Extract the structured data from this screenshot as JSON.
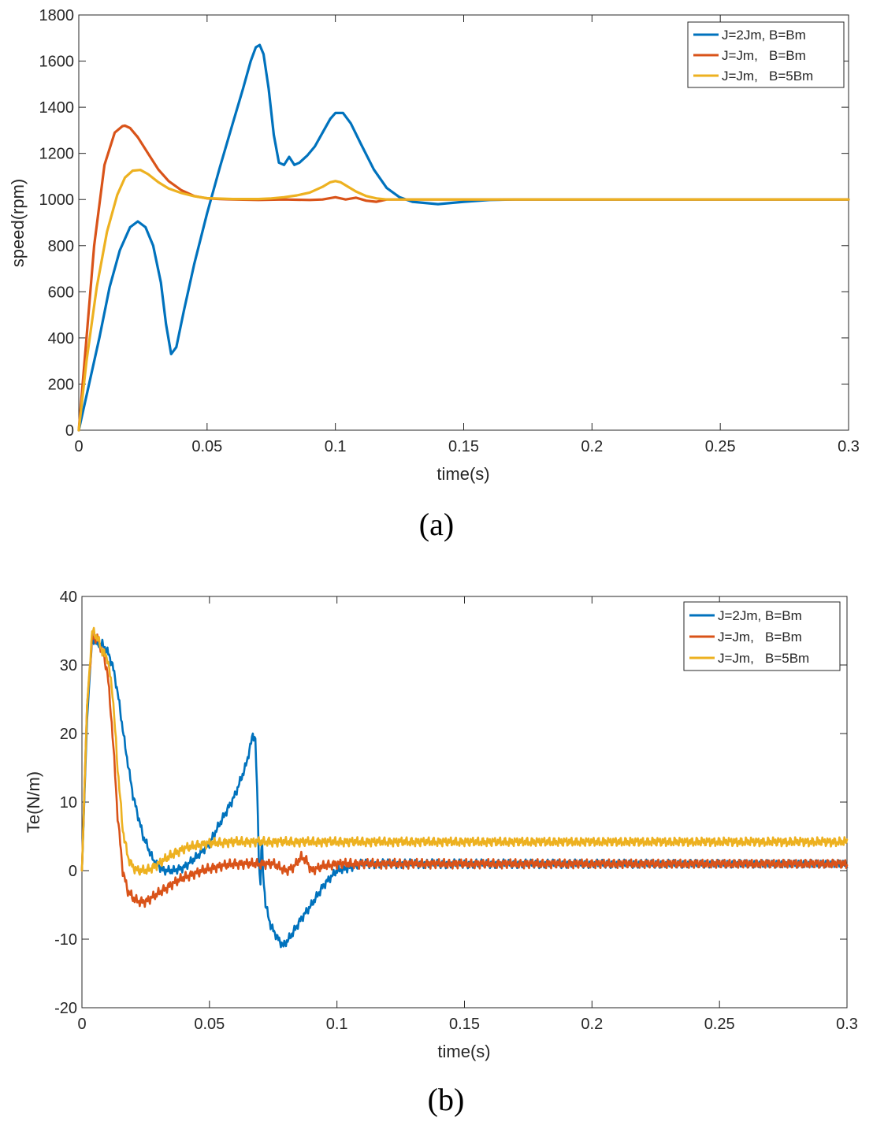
{
  "chart_data": [
    {
      "type": "line",
      "caption": "(a)",
      "xlabel": "time(s)",
      "ylabel": "speed(rpm)",
      "xlim": [
        0,
        0.3
      ],
      "ylim": [
        0,
        1800
      ],
      "xticks": [
        0,
        0.05,
        0.1,
        0.15,
        0.2,
        0.25,
        0.3
      ],
      "xtick_labels": [
        "0",
        "0.05",
        "0.1",
        "0.15",
        "0.2",
        "0.25",
        "0.3"
      ],
      "yticks": [
        0,
        200,
        400,
        600,
        800,
        1000,
        1200,
        1400,
        1600,
        1800
      ],
      "ytick_labels": [
        "0",
        "200",
        "400",
        "600",
        "800",
        "1000",
        "1200",
        "1400",
        "1600",
        "1800"
      ],
      "grid": false,
      "legend_position": "top-right",
      "series": [
        {
          "name": "J=2Jm, B=Bm",
          "color": "#0072BD",
          "x": [
            0,
            0.003,
            0.008,
            0.012,
            0.016,
            0.02,
            0.023,
            0.026,
            0.029,
            0.032,
            0.034,
            0.036,
            0.038,
            0.041,
            0.045,
            0.05,
            0.055,
            0.06,
            0.064,
            0.067,
            0.069,
            0.0705,
            0.072,
            0.074,
            0.076,
            0.078,
            0.08,
            0.082,
            0.084,
            0.086,
            0.089,
            0.092,
            0.095,
            0.098,
            0.1,
            0.103,
            0.106,
            0.11,
            0.115,
            0.12,
            0.125,
            0.13,
            0.135,
            0.14,
            0.145,
            0.15,
            0.16,
            0.17,
            0.3
          ],
          "y": [
            0,
            150,
            400,
            620,
            780,
            880,
            905,
            880,
            800,
            640,
            460,
            330,
            360,
            520,
            720,
            940,
            1140,
            1330,
            1480,
            1600,
            1660,
            1670,
            1630,
            1480,
            1280,
            1160,
            1150,
            1185,
            1150,
            1160,
            1190,
            1230,
            1290,
            1350,
            1375,
            1375,
            1330,
            1240,
            1130,
            1050,
            1010,
            990,
            985,
            980,
            985,
            990,
            998,
            1000,
            1000
          ]
        },
        {
          "name": "J=Jm,   B=Bm",
          "color": "#D95319",
          "x": [
            0,
            0.003,
            0.006,
            0.01,
            0.014,
            0.017,
            0.018,
            0.02,
            0.023,
            0.027,
            0.031,
            0.035,
            0.04,
            0.045,
            0.05,
            0.055,
            0.06,
            0.07,
            0.08,
            0.09,
            0.095,
            0.1,
            0.104,
            0.108,
            0.112,
            0.116,
            0.12,
            0.13,
            0.3
          ],
          "y": [
            0,
            400,
            800,
            1150,
            1290,
            1318,
            1320,
            1310,
            1270,
            1200,
            1130,
            1080,
            1040,
            1015,
            1005,
            1002,
            1000,
            998,
            1000,
            998,
            1000,
            1010,
            1000,
            1008,
            995,
            990,
            1000,
            1000,
            1000
          ]
        },
        {
          "name": "J=Jm,   B=5Bm",
          "color": "#EDB120",
          "x": [
            0,
            0.003,
            0.007,
            0.011,
            0.015,
            0.018,
            0.021,
            0.024,
            0.027,
            0.031,
            0.035,
            0.04,
            0.045,
            0.05,
            0.06,
            0.07,
            0.075,
            0.08,
            0.085,
            0.09,
            0.095,
            0.098,
            0.1,
            0.102,
            0.105,
            0.108,
            0.112,
            0.116,
            0.12,
            0.13,
            0.3
          ],
          "y": [
            0,
            300,
            620,
            860,
            1020,
            1095,
            1125,
            1128,
            1110,
            1075,
            1048,
            1028,
            1014,
            1006,
            1002,
            1002,
            1005,
            1010,
            1018,
            1030,
            1055,
            1075,
            1080,
            1075,
            1055,
            1035,
            1015,
            1005,
            1000,
            1000,
            1000
          ]
        }
      ]
    },
    {
      "type": "line",
      "caption": "(b)",
      "xlabel": "time(s)",
      "ylabel": "Te(N/m)",
      "xlim": [
        0,
        0.3
      ],
      "ylim": [
        -20,
        40
      ],
      "xticks": [
        0,
        0.05,
        0.1,
        0.15,
        0.2,
        0.25,
        0.3
      ],
      "xtick_labels": [
        "0",
        "0.05",
        "0.1",
        "0.15",
        "0.2",
        "0.25",
        "0.3"
      ],
      "yticks": [
        -20,
        -10,
        0,
        10,
        20,
        30,
        40
      ],
      "ytick_labels": [
        "-20",
        "-10",
        "0",
        "10",
        "20",
        "30",
        "40"
      ],
      "grid": false,
      "legend_position": "top-right",
      "series": [
        {
          "name": "J=2Jm, B=Bm",
          "color": "#0072BD",
          "noise": 0.7,
          "x": [
            0,
            0.002,
            0.004,
            0.006,
            0.008,
            0.01,
            0.012,
            0.014,
            0.017,
            0.02,
            0.024,
            0.028,
            0.032,
            0.036,
            0.04,
            0.045,
            0.05,
            0.055,
            0.06,
            0.064,
            0.066,
            0.067,
            0.068,
            0.069,
            0.0695,
            0.07,
            0.0705,
            0.071,
            0.072,
            0.074,
            0.077,
            0.079,
            0.082,
            0.086,
            0.09,
            0.095,
            0.1,
            0.105,
            0.11,
            0.12,
            0.13,
            0.3
          ],
          "y": [
            0,
            22,
            34,
            33,
            33,
            32,
            30,
            26,
            18,
            11,
            5,
            1.5,
            0,
            0,
            0.5,
            2,
            4,
            7.5,
            11,
            15,
            18,
            20,
            19,
            8,
            0,
            -2,
            5.5,
            0,
            -5,
            -8,
            -10,
            -11,
            -9.5,
            -7,
            -5,
            -2,
            0,
            0.5,
            1,
            1,
            1,
            1
          ]
        },
        {
          "name": "J=Jm,   B=Bm",
          "color": "#D95319",
          "noise": 0.8,
          "x": [
            0,
            0.002,
            0.004,
            0.006,
            0.008,
            0.01,
            0.012,
            0.014,
            0.016,
            0.018,
            0.02,
            0.022,
            0.025,
            0.028,
            0.032,
            0.036,
            0.04,
            0.045,
            0.05,
            0.055,
            0.06,
            0.065,
            0.07,
            0.075,
            0.08,
            0.083,
            0.086,
            0.088,
            0.09,
            0.095,
            0.1,
            0.11,
            0.3
          ],
          "y": [
            0,
            24,
            34,
            34,
            32,
            29,
            20,
            8,
            0,
            -3,
            -4,
            -4.5,
            -4.5,
            -3.8,
            -2.8,
            -1.8,
            -1,
            -0.3,
            0.3,
            0.7,
            1,
            1,
            1,
            1,
            0,
            0.5,
            2,
            1.5,
            0,
            0.7,
            1,
            1,
            1
          ]
        },
        {
          "name": "J=Jm,   B=5Bm",
          "color": "#EDB120",
          "noise": 0.8,
          "x": [
            0,
            0.002,
            0.004,
            0.006,
            0.008,
            0.01,
            0.012,
            0.014,
            0.016,
            0.018,
            0.02,
            0.022,
            0.025,
            0.028,
            0.032,
            0.036,
            0.04,
            0.045,
            0.05,
            0.055,
            0.06,
            0.065,
            0.07,
            0.08,
            0.3
          ],
          "y": [
            0,
            24,
            35,
            34,
            32,
            31,
            26,
            15,
            6,
            2,
            0.5,
            0,
            0,
            0.5,
            1.5,
            2.5,
            3.2,
            3.7,
            4,
            4.1,
            4.2,
            4.2,
            4.2,
            4.2,
            4.2
          ]
        }
      ]
    }
  ]
}
